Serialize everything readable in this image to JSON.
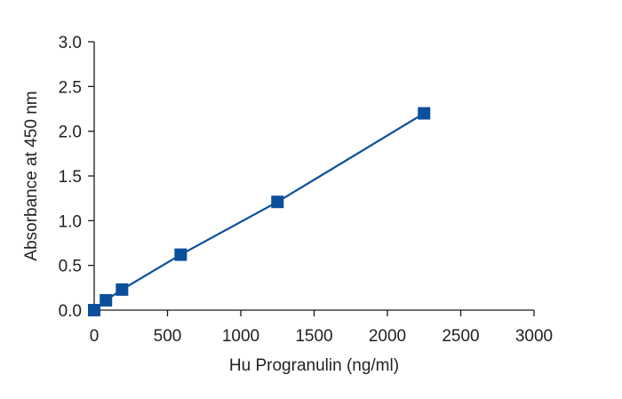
{
  "chart_data": {
    "type": "scatter",
    "title": "",
    "xlabel": "Hu Progranulin (ng/ml)",
    "ylabel": "Absorbance at 450 nm",
    "xlim": [
      0,
      3000
    ],
    "ylim": [
      0,
      3.0
    ],
    "x_ticks": [
      0,
      500,
      1000,
      1500,
      2000,
      2500,
      3000
    ],
    "x_tick_labels": [
      "0",
      "500",
      "1000",
      "1500",
      "2000",
      "2500",
      "3000"
    ],
    "y_ticks": [
      0,
      0.5,
      1.0,
      1.5,
      2.0,
      2.5,
      3.0
    ],
    "y_tick_labels": [
      "0.0",
      "0.5",
      "1.0",
      "1.5",
      "2.0",
      "2.5",
      "3.0"
    ],
    "grid": false,
    "legend": "none",
    "series": [
      {
        "x": [
          0,
          80,
          190,
          590,
          1250,
          2250
        ],
        "y": [
          0.0,
          0.11,
          0.23,
          0.62,
          1.21,
          2.2
        ],
        "marker": "square",
        "color": "#0a4f9c",
        "trendline": "linear"
      }
    ]
  }
}
